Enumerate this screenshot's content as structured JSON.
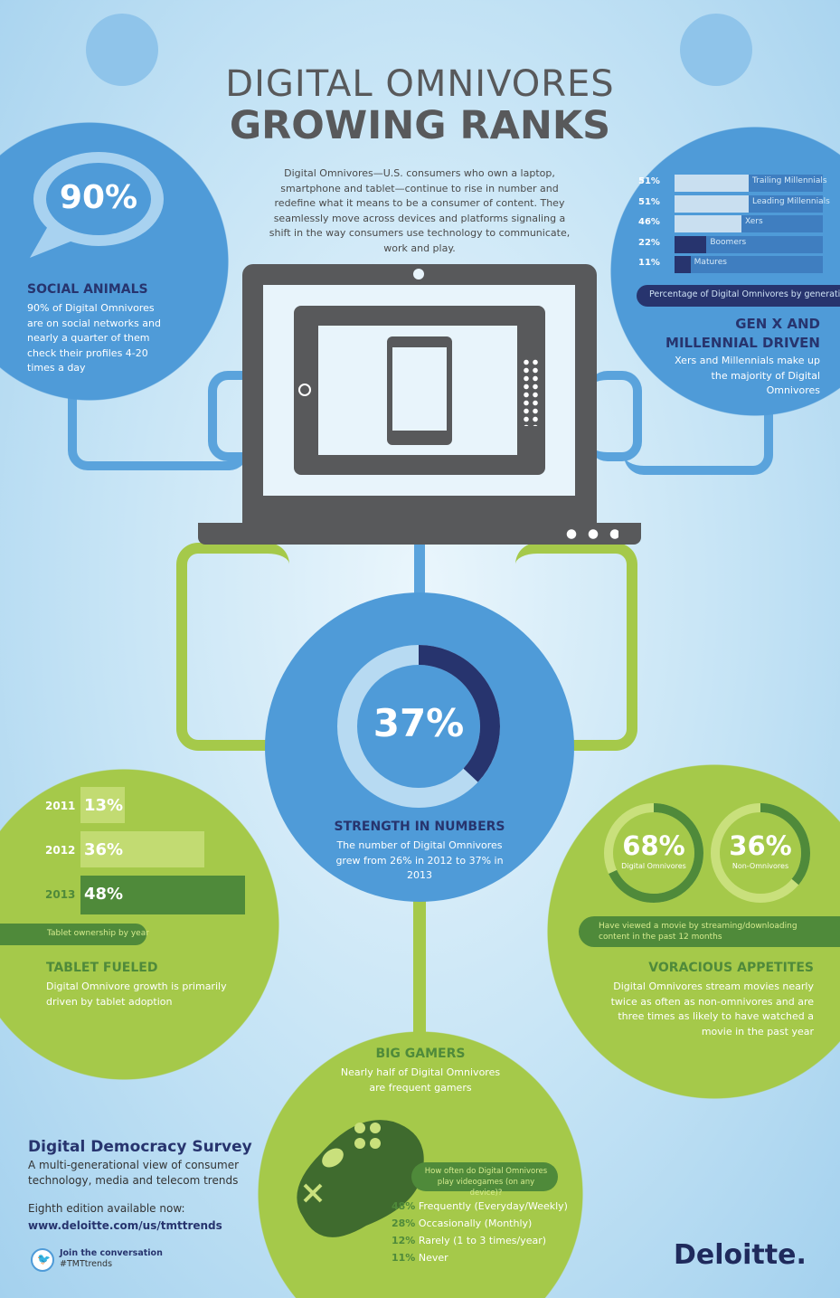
{
  "title": {
    "line1": "DIGITAL OMNIVORES",
    "line2": "GROWING RANKS"
  },
  "intro": "Digital Omnivores—U.S. consumers who own a laptop, smartphone and tablet—continue to rise in number and redefine what it means to be a consumer of content. They seamlessly move across devices and platforms signaling a shift in the way consumers use technology to communicate, work and play.",
  "social": {
    "value": "90%",
    "heading": "SOCIAL ANIMALS",
    "body": "90% of Digital Omnivores are on social networks and nearly a quarter of them check their profiles 4-20 times a day"
  },
  "generation": {
    "caption": "Percentage of Digital Omnivores by generation",
    "heading1": "GEN X AND",
    "heading2": "MILLENNIAL DRIVEN",
    "body": "Xers and Millennials make up the majority of Digital Omnivores",
    "bars": [
      {
        "label": "Trailing Millennials",
        "value": 51,
        "text": "51%"
      },
      {
        "label": "Leading Millennials",
        "value": 51,
        "text": "51%"
      },
      {
        "label": "Xers",
        "value": 46,
        "text": "46%"
      },
      {
        "label": "Boomers",
        "value": 22,
        "text": "22%"
      },
      {
        "label": "Matures",
        "value": 11,
        "text": "11%"
      }
    ]
  },
  "strength": {
    "value": 37,
    "text": "37%",
    "heading": "STRENGTH IN NUMBERS",
    "body": "The number of Digital Omnivores grew from 26% in 2012 to 37% in 2013"
  },
  "tablet": {
    "caption": "Tablet ownership by year",
    "heading": "TABLET FUELED",
    "body": "Digital Omnivore growth is primarily driven by tablet adoption",
    "bars": [
      {
        "year": "2011",
        "value": 13,
        "text": "13%"
      },
      {
        "year": "2012",
        "value": 36,
        "text": "36%"
      },
      {
        "year": "2013",
        "value": 48,
        "text": "48%"
      }
    ]
  },
  "movies": {
    "omni": {
      "value": 68,
      "text": "68%",
      "label": "Digital Omnivores"
    },
    "non": {
      "value": 36,
      "text": "36%",
      "label": "Non-Omnivores"
    },
    "caption": "Have viewed a movie by streaming/downloading content in the past 12 months",
    "heading": "VORACIOUS APPETITES",
    "body": "Digital Omnivores stream movies nearly twice as often as non-omnivores and are three times as likely to have watched a movie in the past year"
  },
  "gamers": {
    "heading": "BIG GAMERS",
    "body": "Nearly half of Digital Omnivores are frequent gamers",
    "question": "How often do Digital Omnivores play videogames (on any device)?",
    "items": [
      {
        "pct": "48%",
        "label": "Frequently (Everyday/Weekly)"
      },
      {
        "pct": "28%",
        "label": "Occasionally (Monthly)"
      },
      {
        "pct": "12%",
        "label": "Rarely (1 to 3 times/year)"
      },
      {
        "pct": "11%",
        "label": "Never"
      }
    ]
  },
  "survey": {
    "title": "Digital Democracy Survey",
    "subtitle": "A multi-generational view of consumer technology, media and telecom trends",
    "edition": "Eighth edition available now:",
    "url": "www.deloitte.com/us/tmttrends",
    "join": "Join the conversation",
    "hashtag": "#TMTtrends"
  },
  "logo": "Deloitte.",
  "colors": {
    "blue": "#4f9bd8",
    "navy": "#27346e",
    "green": "#a5c94a",
    "darkgreen": "#4f8a3a",
    "gray": "#58595b"
  }
}
